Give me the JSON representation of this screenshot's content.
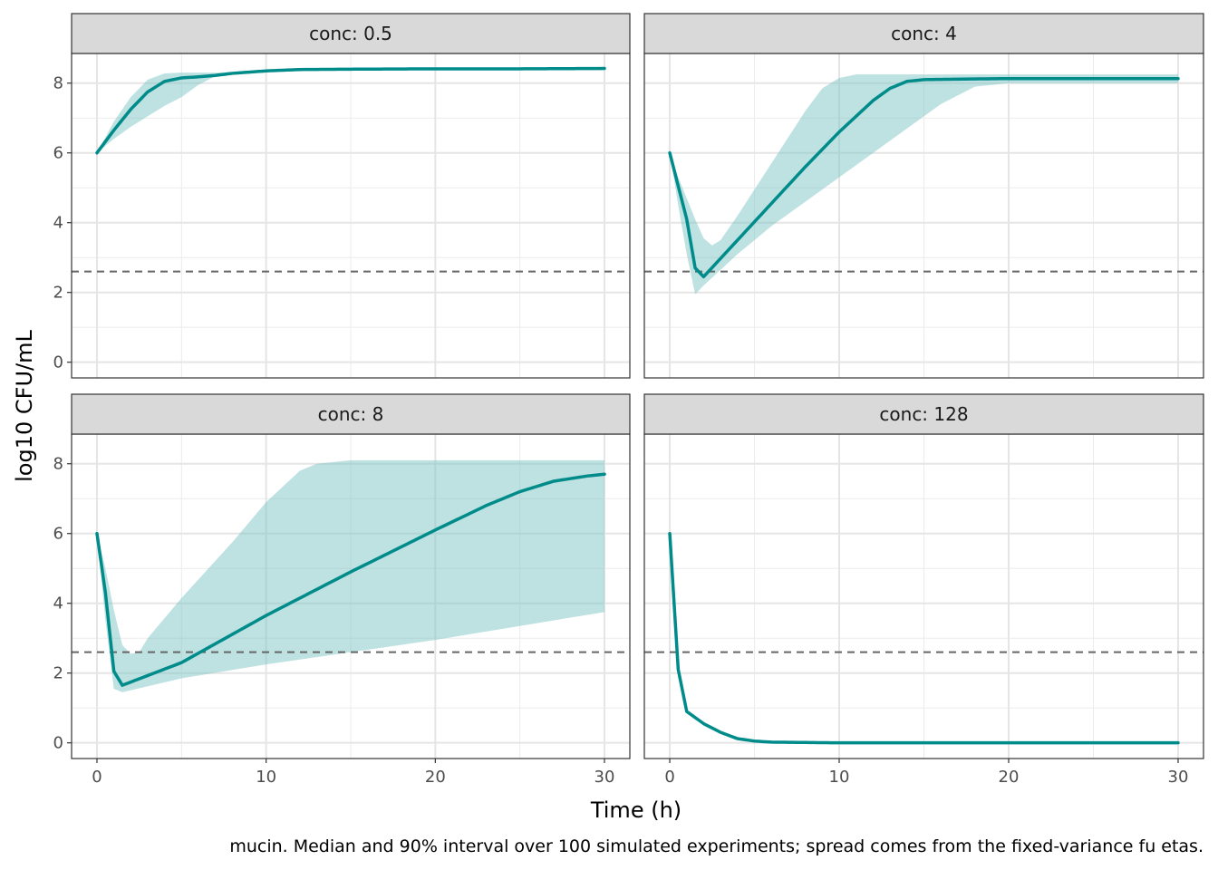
{
  "chart_data": {
    "type": "line",
    "xlabel": "Time (h)",
    "ylabel": "log10 CFU/mL",
    "xlim": [
      -1.5,
      31.5
    ],
    "ylim": [
      -0.45,
      8.85
    ],
    "x_ticks": [
      0,
      10,
      20,
      30
    ],
    "y_ticks": [
      0,
      2,
      4,
      6,
      8
    ],
    "grid": true,
    "legend": "none",
    "threshold": 2.6,
    "caption": "mucin. Median and 90% interval over 100 simulated experiments; spread comes from the fixed-variance fu etas.",
    "colors": {
      "line": "#008B8B",
      "ribbon": "#7EC4C4",
      "threshold": "#666666",
      "strip": "#d9d9d9"
    },
    "panels": [
      {
        "strip": "conc: 0.5",
        "median": [
          [
            0,
            6.0
          ],
          [
            1,
            6.65
          ],
          [
            2,
            7.25
          ],
          [
            3,
            7.75
          ],
          [
            4,
            8.05
          ],
          [
            5,
            8.15
          ],
          [
            6,
            8.18
          ],
          [
            7,
            8.22
          ],
          [
            8,
            8.28
          ],
          [
            10,
            8.35
          ],
          [
            12,
            8.39
          ],
          [
            15,
            8.4
          ],
          [
            20,
            8.41
          ],
          [
            25,
            8.41
          ],
          [
            30,
            8.42
          ]
        ],
        "upper": [
          [
            0,
            6.0
          ],
          [
            1,
            6.9
          ],
          [
            2,
            7.6
          ],
          [
            3,
            8.1
          ],
          [
            4,
            8.28
          ],
          [
            5,
            8.3
          ],
          [
            6,
            8.3
          ],
          [
            7,
            8.3
          ],
          [
            8,
            8.32
          ],
          [
            10,
            8.36
          ],
          [
            15,
            8.4
          ],
          [
            20,
            8.41
          ],
          [
            30,
            8.42
          ]
        ],
        "lower": [
          [
            0,
            6.0
          ],
          [
            1,
            6.4
          ],
          [
            2,
            6.75
          ],
          [
            3,
            7.05
          ],
          [
            4,
            7.35
          ],
          [
            5,
            7.6
          ],
          [
            6,
            7.95
          ],
          [
            7,
            8.2
          ],
          [
            8,
            8.25
          ],
          [
            10,
            8.33
          ],
          [
            15,
            8.39
          ],
          [
            20,
            8.41
          ],
          [
            30,
            8.42
          ]
        ]
      },
      {
        "strip": "conc: 4",
        "median": [
          [
            0,
            6.0
          ],
          [
            0.5,
            5.05
          ],
          [
            1,
            4.1
          ],
          [
            1.5,
            2.7
          ],
          [
            2,
            2.45
          ],
          [
            4,
            3.5
          ],
          [
            6,
            4.55
          ],
          [
            8,
            5.6
          ],
          [
            10,
            6.6
          ],
          [
            12,
            7.5
          ],
          [
            13,
            7.85
          ],
          [
            14,
            8.05
          ],
          [
            15,
            8.1
          ],
          [
            18,
            8.12
          ],
          [
            20,
            8.13
          ],
          [
            25,
            8.13
          ],
          [
            30,
            8.13
          ]
        ],
        "upper": [
          [
            0,
            6.0
          ],
          [
            0.5,
            5.3
          ],
          [
            1,
            4.7
          ],
          [
            1.5,
            4.1
          ],
          [
            2,
            3.55
          ],
          [
            2.5,
            3.35
          ],
          [
            3,
            3.5
          ],
          [
            4,
            4.2
          ],
          [
            6,
            5.7
          ],
          [
            8,
            7.2
          ],
          [
            9,
            7.85
          ],
          [
            10,
            8.15
          ],
          [
            11,
            8.25
          ],
          [
            20,
            8.25
          ],
          [
            30,
            8.25
          ]
        ],
        "lower": [
          [
            0,
            6.0
          ],
          [
            0.5,
            4.5
          ],
          [
            1,
            3.1
          ],
          [
            1.5,
            1.95
          ],
          [
            2,
            2.2
          ],
          [
            4,
            3.1
          ],
          [
            6,
            3.9
          ],
          [
            8,
            4.6
          ],
          [
            10,
            5.3
          ],
          [
            12,
            6.0
          ],
          [
            14,
            6.7
          ],
          [
            16,
            7.4
          ],
          [
            18,
            7.9
          ],
          [
            20,
            8.0
          ],
          [
            25,
            8.0
          ],
          [
            30,
            8.0
          ]
        ]
      },
      {
        "strip": "conc: 8",
        "median": [
          [
            0,
            6.0
          ],
          [
            0.5,
            4.3
          ],
          [
            1,
            2.05
          ],
          [
            1.5,
            1.65
          ],
          [
            5,
            2.3
          ],
          [
            10,
            3.65
          ],
          [
            15,
            4.9
          ],
          [
            20,
            6.1
          ],
          [
            23,
            6.8
          ],
          [
            25,
            7.2
          ],
          [
            27,
            7.5
          ],
          [
            29,
            7.65
          ],
          [
            30,
            7.7
          ]
        ],
        "upper": [
          [
            0,
            6.0
          ],
          [
            0.5,
            5.0
          ],
          [
            1,
            3.8
          ],
          [
            1.5,
            2.8
          ],
          [
            2,
            2.55
          ],
          [
            2.5,
            2.6
          ],
          [
            3,
            3.0
          ],
          [
            5,
            4.15
          ],
          [
            8,
            5.75
          ],
          [
            10,
            6.9
          ],
          [
            12,
            7.8
          ],
          [
            13,
            8.0
          ],
          [
            15,
            8.1
          ],
          [
            30,
            8.1
          ]
        ],
        "lower": [
          [
            0,
            6.0
          ],
          [
            0.5,
            3.5
          ],
          [
            1,
            1.55
          ],
          [
            1.5,
            1.45
          ],
          [
            5,
            1.85
          ],
          [
            10,
            2.25
          ],
          [
            15,
            2.6
          ],
          [
            20,
            2.95
          ],
          [
            25,
            3.35
          ],
          [
            30,
            3.75
          ]
        ]
      },
      {
        "strip": "conc: 128",
        "median": [
          [
            0,
            6.0
          ],
          [
            0.5,
            2.1
          ],
          [
            1,
            0.9
          ],
          [
            2,
            0.55
          ],
          [
            3,
            0.3
          ],
          [
            4,
            0.12
          ],
          [
            5,
            0.05
          ],
          [
            6,
            0.02
          ],
          [
            8,
            0.01
          ],
          [
            10,
            0.0
          ],
          [
            30,
            0.0
          ]
        ],
        "upper": null,
        "lower": null
      }
    ]
  }
}
